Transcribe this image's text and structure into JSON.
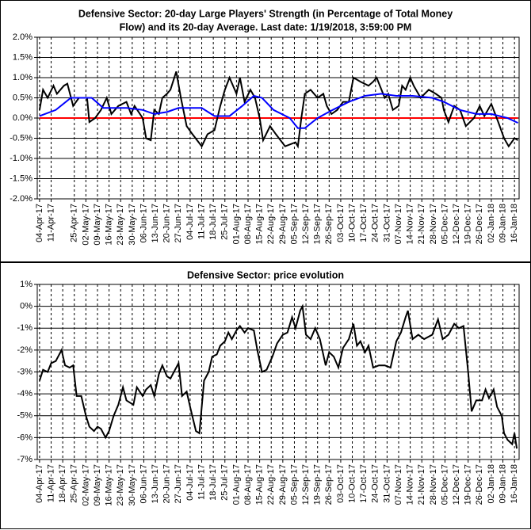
{
  "chart_data": [
    {
      "type": "line",
      "title": "Defensive Sector: 20-day Large Players' Strength (in Percentage of Total Money",
      "subtitle": "Flow) and its 20-day Average. Last date: 1/19/2018, 3:59:00 PM",
      "xlim": [
        -0.2,
        41.4
      ],
      "ylim": [
        -2,
        2
      ],
      "grid": true,
      "yticks": [
        {
          "value": -2,
          "label": "-2.0%"
        },
        {
          "value": -1.5,
          "label": "-1.5%"
        },
        {
          "value": -1,
          "label": "-1.0%"
        },
        {
          "value": -0.5,
          "label": "-0.5%"
        },
        {
          "value": 0,
          "label": "0.0%"
        },
        {
          "value": 0.5,
          "label": "0.5%"
        },
        {
          "value": 1,
          "label": "1.0%"
        },
        {
          "value": 1.5,
          "label": "1.5%"
        },
        {
          "value": 2,
          "label": "2.0%"
        }
      ],
      "xticks": [
        {
          "value": 0,
          "label": "04-Apr-17"
        },
        {
          "value": 1,
          "label": "11-Apr-17"
        },
        {
          "value": 3,
          "label": "25-Apr-17"
        },
        {
          "value": 4,
          "label": "02-May-17"
        },
        {
          "value": 5,
          "label": "09-May-17"
        },
        {
          "value": 6,
          "label": "16-May-17"
        },
        {
          "value": 7,
          "label": "23-May-17"
        },
        {
          "value": 8,
          "label": "30-May-17"
        },
        {
          "value": 9,
          "label": "06-Jun-17"
        },
        {
          "value": 10,
          "label": "13-Jun-17"
        },
        {
          "value": 11,
          "label": "20-Jun-17"
        },
        {
          "value": 12,
          "label": "27-Jun-17"
        },
        {
          "value": 13,
          "label": "04-Jul-17"
        },
        {
          "value": 14,
          "label": "11-Jul-17"
        },
        {
          "value": 15,
          "label": "18-Jul-17"
        },
        {
          "value": 16,
          "label": "25-Jul-17"
        },
        {
          "value": 17,
          "label": "01-Aug-17"
        },
        {
          "value": 18,
          "label": "08-Aug-17"
        },
        {
          "value": 19,
          "label": "15-Aug-17"
        },
        {
          "value": 20,
          "label": "22-Aug-17"
        },
        {
          "value": 21,
          "label": "29-Aug-17"
        },
        {
          "value": 22,
          "label": "05-Sep-17"
        },
        {
          "value": 23,
          "label": "12-Sep-17"
        },
        {
          "value": 24,
          "label": "19-Sep-17"
        },
        {
          "value": 25,
          "label": "26-Sep-17"
        },
        {
          "value": 26,
          "label": "03-Oct-17"
        },
        {
          "value": 27,
          "label": "10-Oct-17"
        },
        {
          "value": 28,
          "label": "17-Oct-17"
        },
        {
          "value": 29,
          "label": "24-Oct-17"
        },
        {
          "value": 30,
          "label": "31-Oct-17"
        },
        {
          "value": 31,
          "label": "07-Nov-17"
        },
        {
          "value": 32,
          "label": "14-Nov-17"
        },
        {
          "value": 33,
          "label": "21-Nov-17"
        },
        {
          "value": 34,
          "label": "28-Nov-17"
        },
        {
          "value": 35,
          "label": "05-Dec-17"
        },
        {
          "value": 36,
          "label": "12-Dec-17"
        },
        {
          "value": 37,
          "label": "19-Dec-17"
        },
        {
          "value": 38,
          "label": "26-Dec-17"
        },
        {
          "value": 39,
          "label": "02-Jan-18"
        },
        {
          "value": 40,
          "label": "09-Jan-18"
        },
        {
          "value": 41,
          "label": "16-Jan-18"
        }
      ],
      "series": [
        {
          "color": "#ff0000",
          "x": [
            0,
            41.3
          ],
          "values": [
            0,
            0
          ]
        },
        {
          "color": "#000000",
          "x": [
            0,
            0.3,
            0.7,
            1.2,
            1.5,
            2.1,
            2.4,
            2.9,
            3.4,
            4.1,
            4.3,
            4.8,
            5.3,
            5.8,
            6.2,
            6.8,
            7.5,
            7.9,
            8.2,
            8.9,
            9.2,
            9.6,
            9.9,
            10.3,
            10.6,
            11.0,
            11.3,
            11.8,
            12.2,
            12.7,
            13.2,
            14.0,
            14.5,
            15.1,
            15.6,
            16.0,
            16.4,
            17.0,
            17.3,
            17.7,
            18.2,
            18.6,
            19.0,
            19.3,
            19.9,
            20.4,
            21.2,
            22.1,
            22.3,
            22.6,
            22.9,
            23.4,
            24.0,
            24.5,
            24.8,
            25.2,
            25.7,
            26.2,
            26.7,
            27.1,
            27.7,
            28.4,
            28.8,
            29.1,
            29.8,
            30.1,
            30.5,
            31.0,
            31.3,
            31.6,
            32.0,
            32.3,
            32.9,
            33.6,
            34.2,
            34.7,
            34.9,
            35.3,
            35.8,
            36.3,
            36.8,
            37.5,
            38.0,
            38.4,
            39.0,
            39.6,
            40.1,
            40.5,
            41.0,
            41.3
          ],
          "values": [
            0.2,
            0.7,
            0.5,
            0.8,
            0.6,
            0.8,
            0.85,
            0.3,
            0.5,
            0.5,
            -0.1,
            0,
            0.2,
            0.5,
            0.1,
            0.3,
            0.4,
            0.1,
            0.3,
            0,
            -0.5,
            -0.55,
            0.2,
            0.1,
            0.5,
            0.6,
            0.7,
            1.15,
            0.5,
            -0.2,
            -0.4,
            -0.7,
            -0.4,
            -0.3,
            0.3,
            0.7,
            1.0,
            0.6,
            1.0,
            0.4,
            0.7,
            0.5,
            0,
            -0.55,
            -0.2,
            -0.4,
            -0.7,
            -0.6,
            -0.7,
            0,
            0.6,
            0.7,
            0.5,
            0.6,
            0.3,
            0.1,
            0.2,
            0.4,
            0.4,
            1.0,
            0.9,
            0.8,
            0.9,
            1.0,
            0.5,
            0.6,
            0.2,
            0.3,
            0.8,
            0.7,
            1.0,
            0.8,
            0.5,
            0.7,
            0.6,
            0.5,
            0.2,
            -0.1,
            0.3,
            0.2,
            -0.2,
            0,
            0.3,
            0.05,
            0.35,
            -0.1,
            -0.5,
            -0.7,
            -0.5,
            -0.55
          ]
        },
        {
          "color": "#0000ff",
          "x": [
            0,
            1.4,
            2.7,
            4.5,
            5.5,
            7.5,
            8.9,
            9.9,
            11.0,
            12.0,
            14.0,
            15.1,
            16.4,
            17.5,
            18.5,
            19.2,
            20.2,
            21.6,
            22.3,
            22.9,
            24.0,
            25.3,
            26.7,
            28.1,
            29.5,
            30.8,
            32.2,
            33.9,
            34.9,
            36.3,
            37.7,
            39.0,
            40.4,
            41.3
          ],
          "values": [
            0.05,
            0.2,
            0.5,
            0.5,
            0.25,
            0.25,
            0.2,
            0.1,
            0.15,
            0.25,
            0.25,
            0.05,
            0.05,
            0.3,
            0.55,
            0.5,
            0.2,
            0,
            -0.25,
            -0.25,
            0,
            0.2,
            0.4,
            0.55,
            0.6,
            0.55,
            0.55,
            0.5,
            0.4,
            0.2,
            0.1,
            0.1,
            0,
            -0.12
          ]
        }
      ]
    },
    {
      "type": "line",
      "title": "Defensive Sector: price evolution",
      "xlim": [
        -0.2,
        41.4
      ],
      "ylim": [
        -7,
        1
      ],
      "grid": true,
      "yticks": [
        {
          "value": -7,
          "label": "-7%"
        },
        {
          "value": -6,
          "label": "-6%"
        },
        {
          "value": -5,
          "label": "-5%"
        },
        {
          "value": -4,
          "label": "-4%"
        },
        {
          "value": -3,
          "label": "-3%"
        },
        {
          "value": -2,
          "label": "-2%"
        },
        {
          "value": -1,
          "label": "-1%"
        },
        {
          "value": 0,
          "label": "0%"
        },
        {
          "value": 1,
          "label": "1%"
        }
      ],
      "xticks": [
        {
          "value": 0,
          "label": "04-Apr-17"
        },
        {
          "value": 1,
          "label": "11-Apr-17"
        },
        {
          "value": 2,
          "label": "18-Apr-17"
        },
        {
          "value": 3,
          "label": "25-Apr-17"
        },
        {
          "value": 4,
          "label": "02-May-17"
        },
        {
          "value": 5,
          "label": "09-May-17"
        },
        {
          "value": 6,
          "label": "16-May-17"
        },
        {
          "value": 7,
          "label": "23-May-17"
        },
        {
          "value": 8,
          "label": "30-May-17"
        },
        {
          "value": 9,
          "label": "06-Jun-17"
        },
        {
          "value": 10,
          "label": "13-Jun-17"
        },
        {
          "value": 11,
          "label": "20-Jun-17"
        },
        {
          "value": 12,
          "label": "27-Jun-17"
        },
        {
          "value": 13,
          "label": "04-Jul-17"
        },
        {
          "value": 14,
          "label": "11-Jul-17"
        },
        {
          "value": 15,
          "label": "18-Jul-17"
        },
        {
          "value": 16,
          "label": "25-Jul-17"
        },
        {
          "value": 17,
          "label": "01-Aug-17"
        },
        {
          "value": 18,
          "label": "08-Aug-17"
        },
        {
          "value": 19,
          "label": "15-Aug-17"
        },
        {
          "value": 20,
          "label": "22-Aug-17"
        },
        {
          "value": 21,
          "label": "29-Aug-17"
        },
        {
          "value": 22,
          "label": "05-Sep-17"
        },
        {
          "value": 23,
          "label": "12-Sep-17"
        },
        {
          "value": 24,
          "label": "19-Sep-17"
        },
        {
          "value": 25,
          "label": "26-Sep-17"
        },
        {
          "value": 26,
          "label": "03-Oct-17"
        },
        {
          "value": 27,
          "label": "10-Oct-17"
        },
        {
          "value": 28,
          "label": "17-Oct-17"
        },
        {
          "value": 29,
          "label": "24-Oct-17"
        },
        {
          "value": 30,
          "label": "31-Oct-17"
        },
        {
          "value": 31,
          "label": "07-Nov-17"
        },
        {
          "value": 32,
          "label": "14-Nov-17"
        },
        {
          "value": 33,
          "label": "21-Nov-17"
        },
        {
          "value": 34,
          "label": "28-Nov-17"
        },
        {
          "value": 35,
          "label": "05-Dec-17"
        },
        {
          "value": 36,
          "label": "12-Dec-17"
        },
        {
          "value": 37,
          "label": "19-Dec-17"
        },
        {
          "value": 38,
          "label": "26-Dec-17"
        },
        {
          "value": 39,
          "label": "02-Jan-18"
        },
        {
          "value": 40,
          "label": "09-Jan-18"
        },
        {
          "value": 41,
          "label": "16-Jan-18"
        }
      ],
      "series": [
        {
          "color": "#000000",
          "x": [
            0,
            0.3,
            0.7,
            1.0,
            1.4,
            1.6,
            1.9,
            2.2,
            2.6,
            2.9,
            3.2,
            3.6,
            4.0,
            4.3,
            4.7,
            5.0,
            5.3,
            5.7,
            6.0,
            6.4,
            6.8,
            7.2,
            7.5,
            8.1,
            8.4,
            8.9,
            9.2,
            9.6,
            9.9,
            10.3,
            10.6,
            11.0,
            11.3,
            11.6,
            12.0,
            12.3,
            12.7,
            13.0,
            13.5,
            13.8,
            14.2,
            14.6,
            14.9,
            15.3,
            15.6,
            16.0,
            16.3,
            16.6,
            17.0,
            17.3,
            17.7,
            18.0,
            18.5,
            18.8,
            19.2,
            19.6,
            20.1,
            20.5,
            21.0,
            21.4,
            21.8,
            22.1,
            22.5,
            22.7,
            23.0,
            23.4,
            23.8,
            24.2,
            24.7,
            25.0,
            25.4,
            25.8,
            26.2,
            26.7,
            27.1,
            27.4,
            27.7,
            28.1,
            28.4,
            28.8,
            29.3,
            29.8,
            30.3,
            30.8,
            31.2,
            31.6,
            31.8,
            32.2,
            32.7,
            33.2,
            33.9,
            34.4,
            34.8,
            35.3,
            35.8,
            36.2,
            36.6,
            37.0,
            37.3,
            37.7,
            38.2,
            38.5,
            38.8,
            39.2,
            39.5,
            39.9,
            40.1,
            40.4,
            40.8,
            41.0,
            41.2
          ],
          "values": [
            -3.4,
            -2.9,
            -3.0,
            -2.6,
            -2.5,
            -2.3,
            -2.0,
            -2.7,
            -2.8,
            -2.7,
            -4.1,
            -4.1,
            -5.0,
            -5.5,
            -5.7,
            -5.5,
            -5.6,
            -6.0,
            -5.7,
            -5.0,
            -4.5,
            -3.7,
            -4.3,
            -4.5,
            -3.7,
            -4.1,
            -3.8,
            -3.6,
            -4.1,
            -3.1,
            -2.7,
            -3.2,
            -3.3,
            -3.0,
            -2.6,
            -4.1,
            -3.9,
            -4.6,
            -5.7,
            -5.8,
            -3.4,
            -3.0,
            -2.3,
            -2.2,
            -1.8,
            -1.6,
            -1.2,
            -1.5,
            -1.1,
            -0.9,
            -1.2,
            -1.0,
            -1.1,
            -2.0,
            -3.0,
            -2.9,
            -2.3,
            -1.7,
            -1.3,
            -1.2,
            -0.5,
            -1.0,
            -0.2,
            0.0,
            -1.3,
            -1.5,
            -1.0,
            -1.5,
            -2.7,
            -2.1,
            -2.3,
            -2.8,
            -1.9,
            -1.5,
            -0.8,
            -1.8,
            -1.6,
            -2.1,
            -1.8,
            -2.8,
            -2.7,
            -2.7,
            -2.8,
            -1.6,
            -1.2,
            -0.5,
            -0.2,
            -1.5,
            -1.3,
            -1.5,
            -1.3,
            -0.6,
            -1.5,
            -1.3,
            -0.8,
            -1.0,
            -0.9,
            -3.0,
            -4.8,
            -4.3,
            -4.3,
            -3.8,
            -4.2,
            -3.8,
            -4.6,
            -5.0,
            -5.8,
            -6.1,
            -6.3,
            -5.8,
            -6.5
          ]
        }
      ]
    }
  ]
}
